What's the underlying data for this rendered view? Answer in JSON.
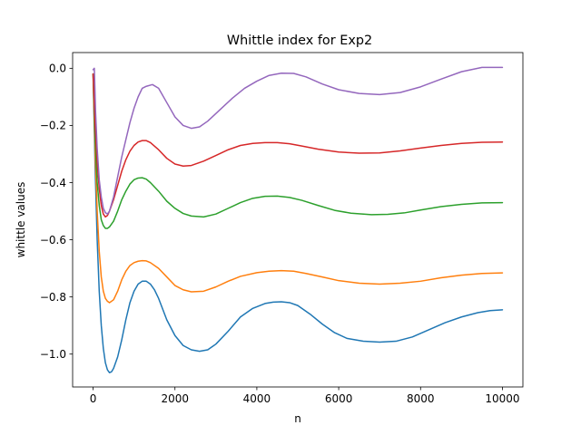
{
  "chart_data": {
    "type": "line",
    "title": "Whittle index for Exp2",
    "xlabel": "n",
    "ylabel": "whittle values",
    "xlim": [
      -500,
      10500
    ],
    "ylim": [
      -1.115,
      0.055
    ],
    "xticks": [
      0,
      2000,
      4000,
      6000,
      8000,
      10000
    ],
    "xtick_labels": [
      "0",
      "2000",
      "4000",
      "6000",
      "8000",
      "10000"
    ],
    "yticks": [
      0.0,
      -0.2,
      -0.4,
      -0.6,
      -0.8,
      -1.0
    ],
    "ytick_labels": [
      "0.0",
      "−0.2",
      "−0.4",
      "−0.6",
      "−0.8",
      "−1.0"
    ],
    "grid": false,
    "legend": "none",
    "series": [
      {
        "color": "#1f77b4",
        "points": [
          [
            0,
            -0.02
          ],
          [
            50,
            -0.35
          ],
          [
            100,
            -0.6
          ],
          [
            150,
            -0.78
          ],
          [
            200,
            -0.9
          ],
          [
            250,
            -0.98
          ],
          [
            300,
            -1.03
          ],
          [
            350,
            -1.055
          ],
          [
            400,
            -1.065
          ],
          [
            450,
            -1.062
          ],
          [
            500,
            -1.05
          ],
          [
            600,
            -1.01
          ],
          [
            700,
            -0.95
          ],
          [
            800,
            -0.88
          ],
          [
            900,
            -0.82
          ],
          [
            1000,
            -0.78
          ],
          [
            1100,
            -0.755
          ],
          [
            1200,
            -0.745
          ],
          [
            1300,
            -0.745
          ],
          [
            1400,
            -0.755
          ],
          [
            1500,
            -0.775
          ],
          [
            1600,
            -0.805
          ],
          [
            1800,
            -0.88
          ],
          [
            2000,
            -0.935
          ],
          [
            2200,
            -0.97
          ],
          [
            2400,
            -0.985
          ],
          [
            2600,
            -0.99
          ],
          [
            2800,
            -0.985
          ],
          [
            3000,
            -0.965
          ],
          [
            3300,
            -0.92
          ],
          [
            3600,
            -0.87
          ],
          [
            3900,
            -0.84
          ],
          [
            4200,
            -0.823
          ],
          [
            4400,
            -0.818
          ],
          [
            4600,
            -0.817
          ],
          [
            4800,
            -0.82
          ],
          [
            5000,
            -0.83
          ],
          [
            5300,
            -0.86
          ],
          [
            5600,
            -0.895
          ],
          [
            5900,
            -0.925
          ],
          [
            6200,
            -0.945
          ],
          [
            6600,
            -0.955
          ],
          [
            7000,
            -0.958
          ],
          [
            7400,
            -0.955
          ],
          [
            7800,
            -0.94
          ],
          [
            8200,
            -0.915
          ],
          [
            8600,
            -0.89
          ],
          [
            9000,
            -0.87
          ],
          [
            9400,
            -0.855
          ],
          [
            9700,
            -0.848
          ],
          [
            10000,
            -0.845
          ]
        ]
      },
      {
        "color": "#ff7f0e",
        "points": [
          [
            0,
            -0.02
          ],
          [
            50,
            -0.3
          ],
          [
            100,
            -0.5
          ],
          [
            150,
            -0.64
          ],
          [
            200,
            -0.73
          ],
          [
            250,
            -0.78
          ],
          [
            300,
            -0.805
          ],
          [
            350,
            -0.815
          ],
          [
            400,
            -0.82
          ],
          [
            500,
            -0.81
          ],
          [
            600,
            -0.78
          ],
          [
            700,
            -0.74
          ],
          [
            800,
            -0.71
          ],
          [
            900,
            -0.69
          ],
          [
            1000,
            -0.68
          ],
          [
            1100,
            -0.675
          ],
          [
            1200,
            -0.673
          ],
          [
            1300,
            -0.674
          ],
          [
            1400,
            -0.68
          ],
          [
            1600,
            -0.7
          ],
          [
            1800,
            -0.73
          ],
          [
            2000,
            -0.76
          ],
          [
            2200,
            -0.775
          ],
          [
            2400,
            -0.782
          ],
          [
            2700,
            -0.78
          ],
          [
            3000,
            -0.765
          ],
          [
            3300,
            -0.745
          ],
          [
            3600,
            -0.728
          ],
          [
            4000,
            -0.715
          ],
          [
            4300,
            -0.71
          ],
          [
            4600,
            -0.708
          ],
          [
            4900,
            -0.71
          ],
          [
            5200,
            -0.718
          ],
          [
            5600,
            -0.73
          ],
          [
            6000,
            -0.743
          ],
          [
            6500,
            -0.752
          ],
          [
            7000,
            -0.755
          ],
          [
            7500,
            -0.752
          ],
          [
            8000,
            -0.745
          ],
          [
            8500,
            -0.733
          ],
          [
            9000,
            -0.724
          ],
          [
            9500,
            -0.718
          ],
          [
            10000,
            -0.716
          ]
        ]
      },
      {
        "color": "#2ca02c",
        "points": [
          [
            0,
            -0.02
          ],
          [
            50,
            -0.25
          ],
          [
            100,
            -0.4
          ],
          [
            150,
            -0.48
          ],
          [
            200,
            -0.53
          ],
          [
            250,
            -0.55
          ],
          [
            300,
            -0.56
          ],
          [
            350,
            -0.56
          ],
          [
            400,
            -0.555
          ],
          [
            500,
            -0.535
          ],
          [
            600,
            -0.5
          ],
          [
            700,
            -0.46
          ],
          [
            800,
            -0.43
          ],
          [
            900,
            -0.405
          ],
          [
            1000,
            -0.39
          ],
          [
            1100,
            -0.384
          ],
          [
            1200,
            -0.383
          ],
          [
            1300,
            -0.388
          ],
          [
            1400,
            -0.4
          ],
          [
            1600,
            -0.43
          ],
          [
            1800,
            -0.465
          ],
          [
            2000,
            -0.49
          ],
          [
            2200,
            -0.508
          ],
          [
            2400,
            -0.517
          ],
          [
            2700,
            -0.52
          ],
          [
            3000,
            -0.51
          ],
          [
            3300,
            -0.49
          ],
          [
            3600,
            -0.47
          ],
          [
            3900,
            -0.455
          ],
          [
            4200,
            -0.448
          ],
          [
            4500,
            -0.447
          ],
          [
            4800,
            -0.452
          ],
          [
            5100,
            -0.462
          ],
          [
            5500,
            -0.48
          ],
          [
            5900,
            -0.497
          ],
          [
            6300,
            -0.507
          ],
          [
            6800,
            -0.512
          ],
          [
            7200,
            -0.511
          ],
          [
            7600,
            -0.506
          ],
          [
            8000,
            -0.496
          ],
          [
            8500,
            -0.484
          ],
          [
            9000,
            -0.476
          ],
          [
            9500,
            -0.471
          ],
          [
            10000,
            -0.47
          ]
        ]
      },
      {
        "color": "#d62728",
        "points": [
          [
            0,
            -0.02
          ],
          [
            50,
            -0.2
          ],
          [
            100,
            -0.33
          ],
          [
            150,
            -0.42
          ],
          [
            200,
            -0.48
          ],
          [
            250,
            -0.51
          ],
          [
            300,
            -0.52
          ],
          [
            350,
            -0.515
          ],
          [
            400,
            -0.5
          ],
          [
            500,
            -0.46
          ],
          [
            600,
            -0.41
          ],
          [
            700,
            -0.36
          ],
          [
            800,
            -0.32
          ],
          [
            900,
            -0.29
          ],
          [
            1000,
            -0.27
          ],
          [
            1100,
            -0.258
          ],
          [
            1200,
            -0.253
          ],
          [
            1300,
            -0.253
          ],
          [
            1400,
            -0.26
          ],
          [
            1600,
            -0.285
          ],
          [
            1800,
            -0.315
          ],
          [
            2000,
            -0.335
          ],
          [
            2200,
            -0.342
          ],
          [
            2400,
            -0.34
          ],
          [
            2700,
            -0.325
          ],
          [
            3000,
            -0.305
          ],
          [
            3300,
            -0.285
          ],
          [
            3600,
            -0.27
          ],
          [
            3900,
            -0.263
          ],
          [
            4200,
            -0.26
          ],
          [
            4500,
            -0.26
          ],
          [
            4800,
            -0.264
          ],
          [
            5100,
            -0.272
          ],
          [
            5500,
            -0.283
          ],
          [
            6000,
            -0.293
          ],
          [
            6500,
            -0.297
          ],
          [
            7000,
            -0.296
          ],
          [
            7500,
            -0.289
          ],
          [
            8000,
            -0.279
          ],
          [
            8500,
            -0.27
          ],
          [
            9000,
            -0.263
          ],
          [
            9500,
            -0.259
          ],
          [
            10000,
            -0.258
          ]
        ]
      },
      {
        "color": "#9467bd",
        "points": [
          [
            0,
            -0.005
          ],
          [
            30,
            0.0
          ],
          [
            60,
            -0.15
          ],
          [
            100,
            -0.28
          ],
          [
            150,
            -0.39
          ],
          [
            200,
            -0.45
          ],
          [
            250,
            -0.49
          ],
          [
            300,
            -0.505
          ],
          [
            350,
            -0.51
          ],
          [
            400,
            -0.5
          ],
          [
            500,
            -0.45
          ],
          [
            600,
            -0.38
          ],
          [
            700,
            -0.31
          ],
          [
            800,
            -0.25
          ],
          [
            900,
            -0.19
          ],
          [
            1000,
            -0.14
          ],
          [
            1100,
            -0.1
          ],
          [
            1200,
            -0.07
          ],
          [
            1300,
            -0.063
          ],
          [
            1450,
            -0.057
          ],
          [
            1600,
            -0.07
          ],
          [
            1800,
            -0.12
          ],
          [
            2000,
            -0.17
          ],
          [
            2200,
            -0.2
          ],
          [
            2400,
            -0.21
          ],
          [
            2600,
            -0.205
          ],
          [
            2800,
            -0.185
          ],
          [
            3100,
            -0.145
          ],
          [
            3400,
            -0.105
          ],
          [
            3700,
            -0.07
          ],
          [
            4000,
            -0.045
          ],
          [
            4300,
            -0.025
          ],
          [
            4600,
            -0.017
          ],
          [
            4900,
            -0.018
          ],
          [
            5200,
            -0.03
          ],
          [
            5600,
            -0.055
          ],
          [
            6000,
            -0.075
          ],
          [
            6500,
            -0.088
          ],
          [
            7000,
            -0.092
          ],
          [
            7500,
            -0.085
          ],
          [
            8000,
            -0.065
          ],
          [
            8500,
            -0.038
          ],
          [
            9000,
            -0.012
          ],
          [
            9500,
            0.003
          ],
          [
            10000,
            0.003
          ]
        ]
      }
    ]
  }
}
